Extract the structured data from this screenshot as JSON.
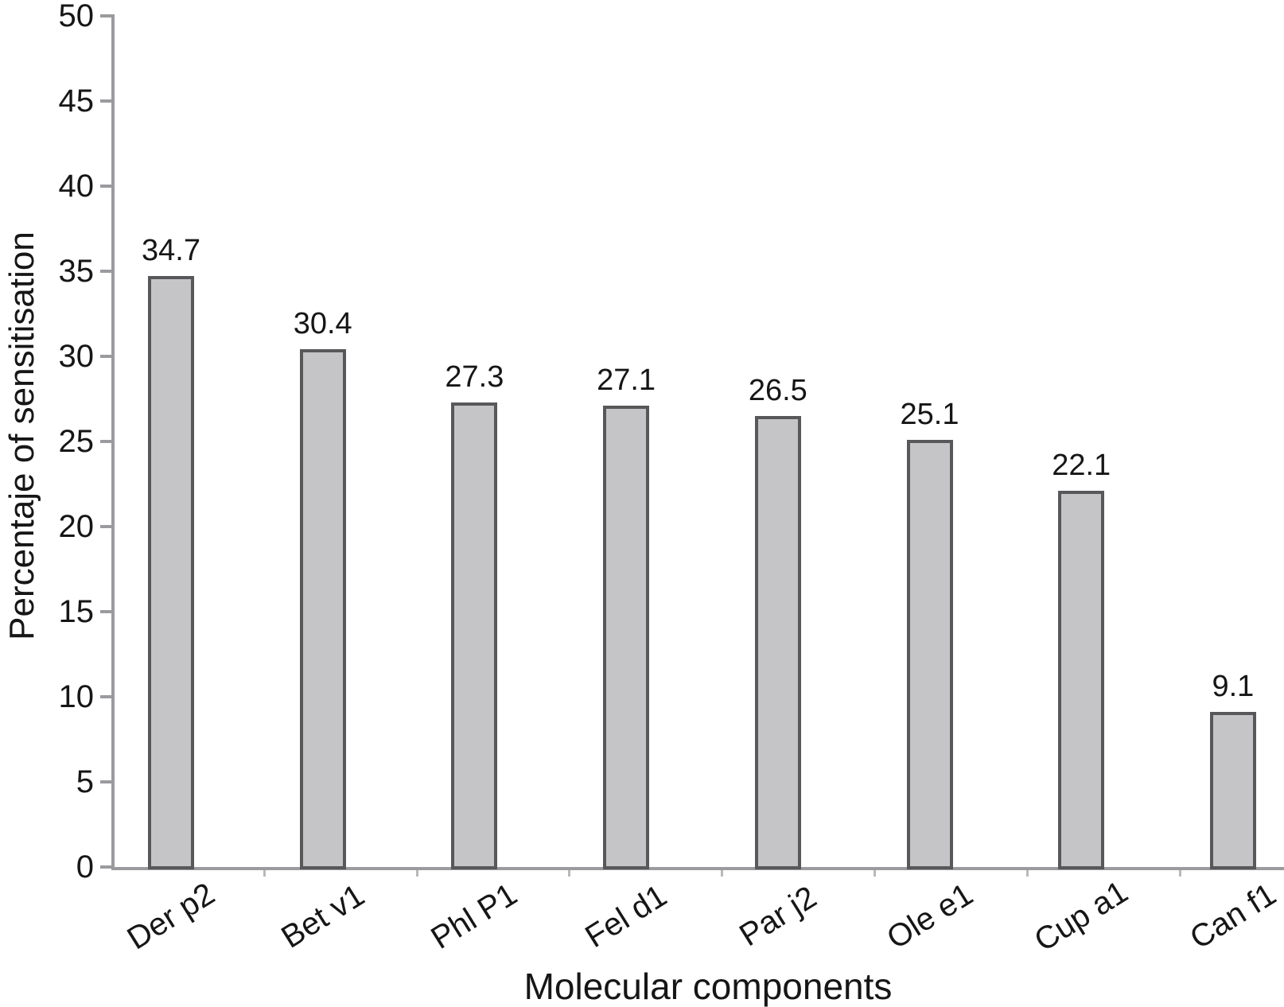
{
  "chart_data": {
    "type": "bar",
    "categories": [
      "Der p2",
      "Bet v1",
      "Phl P1",
      "Fel d1",
      "Par j2",
      "Ole e1",
      "Cup a1",
      "Can f1"
    ],
    "values": [
      34.7,
      30.4,
      27.3,
      27.1,
      26.5,
      25.1,
      22.1,
      9.1
    ],
    "value_labels": [
      "34.7",
      "30.4",
      "27.3",
      "27.1",
      "26.5",
      "25.1",
      "22.1",
      "9.1"
    ],
    "title": "",
    "xlabel": "Molecular components",
    "ylabel": "Percentaje of sensitisation",
    "ylim": [
      0,
      50
    ],
    "ytick_step": 5,
    "ytick_labels": [
      "0",
      "5",
      "10",
      "15",
      "20",
      "25",
      "30",
      "35",
      "40",
      "45",
      "50"
    ],
    "grid": false,
    "legend": "none",
    "colors": {
      "bar_fill": "#c5c5c7",
      "bar_border": "#58585a",
      "axis": "#9b9b9f",
      "text": "#161616",
      "background": "#ffffff"
    }
  }
}
